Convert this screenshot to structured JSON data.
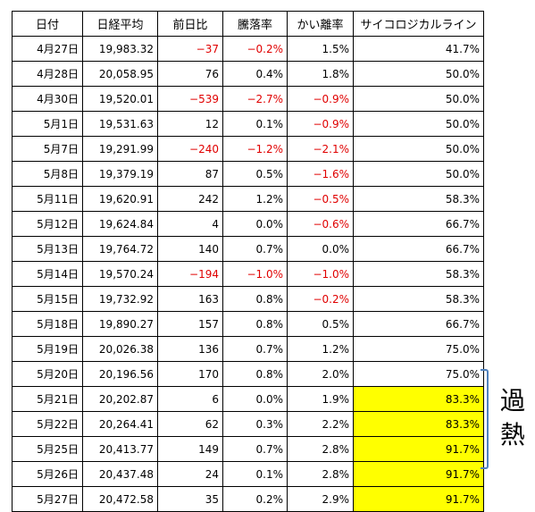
{
  "table": {
    "headers": [
      "日付",
      "日経平均",
      "前日比",
      "騰落率",
      "かい離率",
      "サイコロジカルライン"
    ],
    "rows": [
      {
        "date": "4月27日",
        "close": "19,983.32",
        "change": "−37",
        "rate": "−0.2%",
        "deviation": "1.5%",
        "psy": "41.7%",
        "neg": [
          true,
          true,
          false
        ],
        "hot": false
      },
      {
        "date": "4月28日",
        "close": "20,058.95",
        "change": "76",
        "rate": "0.4%",
        "deviation": "1.8%",
        "psy": "50.0%",
        "neg": [
          false,
          false,
          false
        ],
        "hot": false
      },
      {
        "date": "4月30日",
        "close": "19,520.01",
        "change": "−539",
        "rate": "−2.7%",
        "deviation": "−0.9%",
        "psy": "50.0%",
        "neg": [
          true,
          true,
          true
        ],
        "hot": false
      },
      {
        "date": "5月1日",
        "close": "19,531.63",
        "change": "12",
        "rate": "0.1%",
        "deviation": "−0.9%",
        "psy": "50.0%",
        "neg": [
          false,
          false,
          true
        ],
        "hot": false
      },
      {
        "date": "5月7日",
        "close": "19,291.99",
        "change": "−240",
        "rate": "−1.2%",
        "deviation": "−2.1%",
        "psy": "50.0%",
        "neg": [
          true,
          true,
          true
        ],
        "hot": false
      },
      {
        "date": "5月8日",
        "close": "19,379.19",
        "change": "87",
        "rate": "0.5%",
        "deviation": "−1.6%",
        "psy": "50.0%",
        "neg": [
          false,
          false,
          true
        ],
        "hot": false
      },
      {
        "date": "5月11日",
        "close": "19,620.91",
        "change": "242",
        "rate": "1.2%",
        "deviation": "−0.5%",
        "psy": "58.3%",
        "neg": [
          false,
          false,
          true
        ],
        "hot": false
      },
      {
        "date": "5月12日",
        "close": "19,624.84",
        "change": "4",
        "rate": "0.0%",
        "deviation": "−0.6%",
        "psy": "66.7%",
        "neg": [
          false,
          false,
          true
        ],
        "hot": false
      },
      {
        "date": "5月13日",
        "close": "19,764.72",
        "change": "140",
        "rate": "0.7%",
        "deviation": "0.0%",
        "psy": "66.7%",
        "neg": [
          false,
          false,
          false
        ],
        "hot": false
      },
      {
        "date": "5月14日",
        "close": "19,570.24",
        "change": "−194",
        "rate": "−1.0%",
        "deviation": "−1.0%",
        "psy": "58.3%",
        "neg": [
          true,
          true,
          true
        ],
        "hot": false
      },
      {
        "date": "5月15日",
        "close": "19,732.92",
        "change": "163",
        "rate": "0.8%",
        "deviation": "−0.2%",
        "psy": "58.3%",
        "neg": [
          false,
          false,
          true
        ],
        "hot": false
      },
      {
        "date": "5月18日",
        "close": "19,890.27",
        "change": "157",
        "rate": "0.8%",
        "deviation": "0.5%",
        "psy": "66.7%",
        "neg": [
          false,
          false,
          false
        ],
        "hot": false
      },
      {
        "date": "5月19日",
        "close": "20,026.38",
        "change": "136",
        "rate": "0.7%",
        "deviation": "1.2%",
        "psy": "75.0%",
        "neg": [
          false,
          false,
          false
        ],
        "hot": false
      },
      {
        "date": "5月20日",
        "close": "20,196.56",
        "change": "170",
        "rate": "0.8%",
        "deviation": "2.0%",
        "psy": "75.0%",
        "neg": [
          false,
          false,
          false
        ],
        "hot": false
      },
      {
        "date": "5月21日",
        "close": "20,202.87",
        "change": "6",
        "rate": "0.0%",
        "deviation": "1.9%",
        "psy": "83.3%",
        "neg": [
          false,
          false,
          false
        ],
        "hot": true
      },
      {
        "date": "5月22日",
        "close": "20,264.41",
        "change": "62",
        "rate": "0.3%",
        "deviation": "2.2%",
        "psy": "83.3%",
        "neg": [
          false,
          false,
          false
        ],
        "hot": true
      },
      {
        "date": "5月25日",
        "close": "20,413.77",
        "change": "149",
        "rate": "0.7%",
        "deviation": "2.8%",
        "psy": "91.7%",
        "neg": [
          false,
          false,
          false
        ],
        "hot": true
      },
      {
        "date": "5月26日",
        "close": "20,437.48",
        "change": "24",
        "rate": "0.1%",
        "deviation": "2.8%",
        "psy": "91.7%",
        "neg": [
          false,
          false,
          false
        ],
        "hot": true
      },
      {
        "date": "5月27日",
        "close": "20,472.58",
        "change": "35",
        "rate": "0.2%",
        "deviation": "2.9%",
        "psy": "91.7%",
        "neg": [
          false,
          false,
          false
        ],
        "hot": true
      }
    ]
  },
  "annotation": {
    "line1": "過",
    "line2": "熱"
  },
  "colors": {
    "negative": "#e00000",
    "highlight": "#ffff00",
    "bracket": "#4f81bd"
  }
}
